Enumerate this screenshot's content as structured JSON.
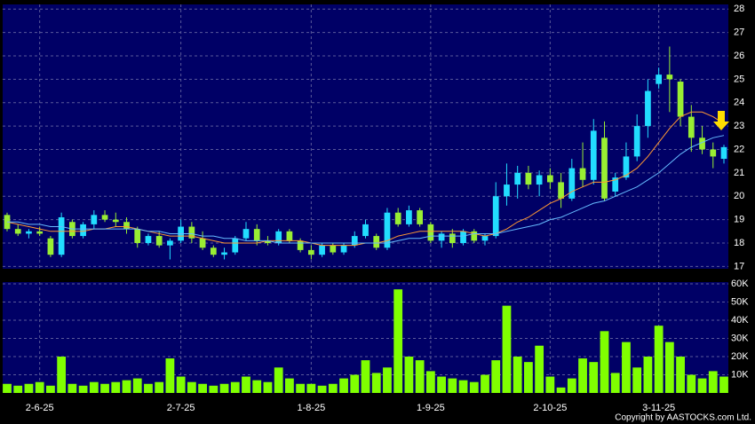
{
  "chart_data": {
    "type": "candlestick",
    "categories": [
      null,
      null,
      null,
      "2-6-25",
      null,
      null,
      null,
      null,
      null,
      null,
      null,
      null,
      null,
      null,
      null,
      null,
      "2-7-25",
      null,
      null,
      null,
      null,
      null,
      null,
      null,
      null,
      null,
      null,
      null,
      "1-8-25",
      null,
      null,
      null,
      null,
      null,
      null,
      null,
      null,
      null,
      null,
      "1-9-25",
      null,
      null,
      null,
      null,
      null,
      null,
      null,
      null,
      null,
      null,
      "2-10-25",
      null,
      null,
      null,
      null,
      null,
      null,
      null,
      null,
      null,
      "3-11-25",
      null,
      null,
      null,
      null,
      null,
      null
    ],
    "open": [
      19.2,
      18.6,
      18.4,
      18.5,
      18.2,
      17.5,
      18.9,
      18.3,
      18.8,
      19.2,
      19.0,
      18.9,
      18.6,
      18.0,
      18.3,
      17.9,
      18.1,
      18.7,
      18.2,
      17.8,
      17.5,
      17.6,
      18.2,
      18.6,
      18.1,
      18.0,
      18.5,
      18.1,
      17.7,
      17.5,
      17.9,
      17.6,
      17.9,
      18.3,
      18.3,
      17.8,
      19.3,
      18.8,
      19.4,
      18.8,
      18.1,
      18.4,
      18.0,
      18.5,
      18.1,
      18.3,
      20.0,
      20.5,
      21.0,
      20.5,
      20.9,
      20.6,
      19.9,
      21.2,
      20.7,
      22.5,
      20.2,
      20.8,
      21.7,
      23.0,
      24.8,
      25.2,
      24.9,
      23.4,
      22.5,
      22.0,
      21.6
    ],
    "high": [
      19.3,
      18.8,
      18.6,
      18.7,
      18.3,
      19.3,
      19.0,
      18.9,
      19.4,
      19.4,
      19.3,
      19.1,
      18.7,
      18.4,
      18.5,
      18.2,
      19.0,
      18.9,
      18.5,
      17.9,
      17.8,
      18.3,
      18.9,
      18.8,
      18.3,
      18.6,
      18.6,
      18.2,
      17.9,
      18.0,
      18.0,
      18.0,
      18.5,
      19.0,
      18.4,
      19.5,
      19.5,
      19.6,
      19.5,
      18.9,
      18.5,
      18.6,
      18.6,
      18.6,
      18.4,
      20.6,
      21.4,
      21.3,
      21.3,
      21.1,
      21.2,
      21.0,
      21.6,
      22.3,
      23.3,
      23.2,
      21.0,
      22.3,
      23.5,
      25.0,
      25.5,
      26.4,
      25.0,
      23.9,
      23.0,
      22.3,
      22.2
    ],
    "low": [
      18.5,
      18.3,
      18.2,
      18.3,
      17.4,
      17.4,
      18.2,
      18.2,
      18.6,
      18.9,
      18.7,
      18.4,
      17.8,
      17.9,
      17.8,
      17.3,
      18.0,
      18.0,
      17.7,
      17.4,
      17.3,
      17.5,
      18.1,
      17.9,
      17.9,
      17.9,
      18.0,
      17.6,
      17.3,
      17.4,
      17.5,
      17.5,
      17.8,
      18.2,
      17.7,
      17.7,
      18.7,
      18.7,
      18.7,
      18.0,
      17.8,
      17.8,
      17.9,
      18.0,
      17.9,
      18.2,
      19.6,
      19.9,
      20.3,
      20.0,
      20.3,
      19.5,
      19.8,
      20.4,
      20.5,
      19.8,
      20.0,
      20.7,
      21.5,
      22.5,
      24.6,
      23.6,
      23.0,
      21.9,
      21.8,
      21.2,
      21.4
    ],
    "close": [
      18.6,
      18.4,
      18.5,
      18.4,
      17.5,
      19.1,
      18.3,
      18.8,
      19.2,
      19.0,
      18.9,
      18.6,
      18.0,
      18.3,
      17.9,
      18.1,
      18.7,
      18.2,
      17.8,
      17.5,
      17.6,
      18.2,
      18.6,
      18.1,
      18.0,
      18.5,
      18.1,
      17.7,
      17.5,
      17.9,
      17.6,
      17.9,
      18.3,
      18.8,
      17.8,
      19.3,
      18.8,
      19.4,
      18.8,
      18.1,
      18.4,
      18.0,
      18.5,
      18.1,
      18.3,
      20.0,
      20.5,
      21.0,
      20.5,
      20.9,
      20.6,
      19.9,
      21.2,
      20.7,
      22.8,
      19.9,
      20.8,
      21.7,
      23.0,
      24.5,
      25.2,
      25.0,
      23.4,
      22.5,
      22.0,
      21.7,
      22.1
    ],
    "ma_series": [
      {
        "color": "#ff9933",
        "values": [
          18.9,
          18.8,
          18.7,
          18.6,
          18.5,
          18.5,
          18.5,
          18.5,
          18.6,
          18.6,
          18.7,
          18.7,
          18.6,
          18.5,
          18.4,
          18.3,
          18.3,
          18.3,
          18.2,
          18.1,
          18.0,
          18.0,
          18.0,
          18.0,
          18.1,
          18.1,
          18.1,
          18.1,
          18.0,
          17.9,
          17.9,
          17.9,
          17.9,
          18.0,
          18.0,
          18.1,
          18.3,
          18.4,
          18.5,
          18.5,
          18.5,
          18.5,
          18.5,
          18.4,
          18.3,
          18.4,
          18.6,
          18.9,
          19.1,
          19.4,
          19.7,
          19.9,
          20.2,
          20.4,
          20.6,
          20.6,
          20.7,
          20.9,
          21.2,
          21.7,
          22.3,
          22.9,
          23.4,
          23.6,
          23.6,
          23.4,
          23.1
        ]
      },
      {
        "color": "#66bbff",
        "values": [
          18.9,
          18.9,
          18.8,
          18.8,
          18.7,
          18.7,
          18.6,
          18.6,
          18.6,
          18.6,
          18.6,
          18.6,
          18.6,
          18.5,
          18.5,
          18.4,
          18.4,
          18.4,
          18.3,
          18.3,
          18.2,
          18.2,
          18.1,
          18.1,
          18.1,
          18.0,
          18.0,
          18.0,
          18.0,
          18.0,
          18.0,
          18.0,
          18.0,
          18.0,
          18.0,
          18.0,
          18.1,
          18.2,
          18.2,
          18.3,
          18.3,
          18.3,
          18.3,
          18.4,
          18.4,
          18.4,
          18.5,
          18.6,
          18.7,
          18.8,
          19.0,
          19.1,
          19.3,
          19.5,
          19.7,
          19.8,
          20.0,
          20.2,
          20.4,
          20.7,
          21.0,
          21.4,
          21.8,
          22.1,
          22.3,
          22.5,
          22.6
        ]
      }
    ],
    "up_color": "#22ddff",
    "down_color": "#99ee33",
    "ylim": [
      16.9,
      28.2
    ],
    "yticks": [
      17,
      18,
      19,
      20,
      21,
      22,
      23,
      24,
      25,
      26,
      27,
      28
    ],
    "volume": [
      5000,
      4000,
      5000,
      6000,
      4000,
      20000,
      5000,
      4000,
      6000,
      5000,
      6000,
      7000,
      8000,
      5000,
      6000,
      19000,
      9000,
      6000,
      5000,
      4000,
      5000,
      6000,
      9000,
      7000,
      6000,
      14000,
      8000,
      5000,
      5000,
      4000,
      5000,
      8000,
      10000,
      18000,
      11000,
      14000,
      57000,
      20000,
      18000,
      12000,
      9000,
      8000,
      7000,
      6000,
      10000,
      18000,
      48000,
      20000,
      17000,
      26000,
      9000,
      3000,
      8000,
      19000,
      17000,
      34000,
      11000,
      28000,
      14000,
      20000,
      37000,
      28000,
      20000,
      10000,
      8000,
      12000,
      9000
    ],
    "volume_color": "#80ff00",
    "vlim": [
      0,
      61000
    ],
    "vticks": [
      {
        "value": 10000,
        "label": "10K"
      },
      {
        "value": 20000,
        "label": "20K"
      },
      {
        "value": 30000,
        "label": "30K"
      },
      {
        "value": 40000,
        "label": "40K"
      },
      {
        "value": 50000,
        "label": "50K"
      },
      {
        "value": 60000,
        "label": "60K"
      }
    ],
    "grid": true,
    "copyright": "Copyright by AASTOCKS.com Ltd."
  }
}
